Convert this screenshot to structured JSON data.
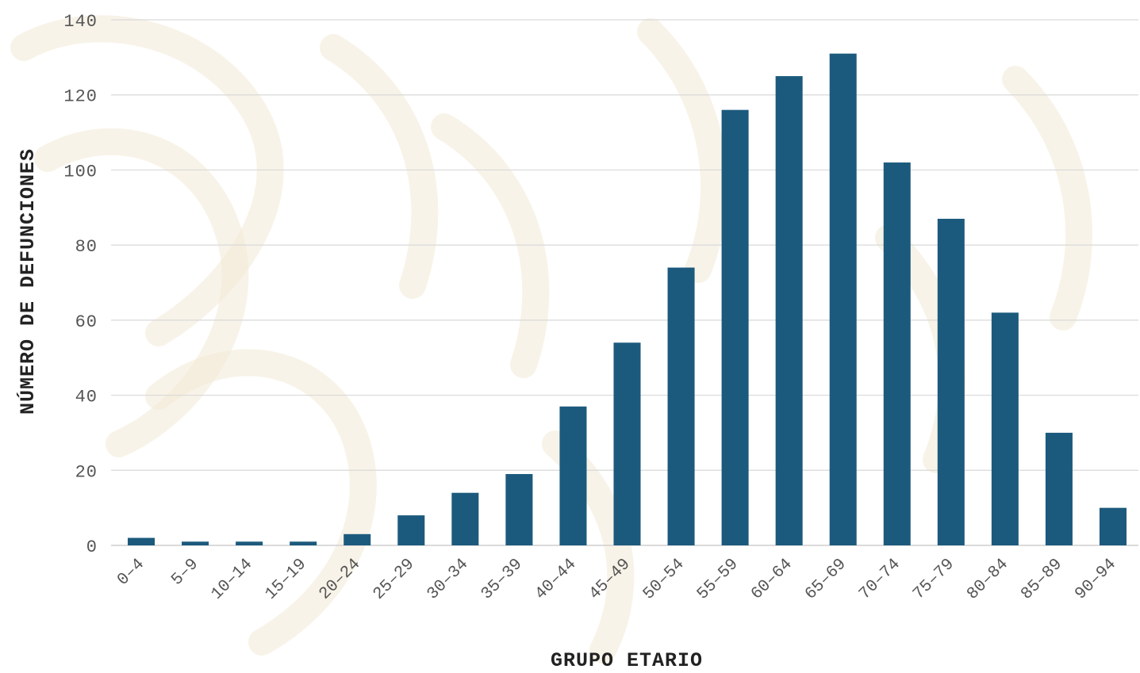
{
  "chart_data": {
    "type": "bar",
    "title": "",
    "xlabel": "GRUPO ETARIO",
    "ylabel": "NÚMERO DE DEFUNCIONES",
    "categories": [
      "0-4",
      "5-9",
      "10-14",
      "15-19",
      "20-24",
      "25-29",
      "30-34",
      "35-39",
      "40-44",
      "45-49",
      "50-54",
      "55-59",
      "60-64",
      "65-69",
      "70-74",
      "75-79",
      "80-84",
      "85-89",
      "90-94"
    ],
    "series": [
      {
        "values": [
          2,
          1,
          1,
          1,
          3,
          8,
          14,
          19,
          37,
          54,
          74,
          116,
          125,
          131,
          102,
          87,
          62,
          30,
          10
        ]
      }
    ],
    "ylim": [
      0,
      140
    ],
    "yticks": [
      "0",
      "20",
      "40",
      "60",
      "80",
      "100",
      "120",
      "140"
    ],
    "grid": true,
    "legend": "none",
    "colors": {
      "bar": "#1c5a7d",
      "grid": "#d9d9d9",
      "watermark": "#f3e9d6"
    }
  }
}
